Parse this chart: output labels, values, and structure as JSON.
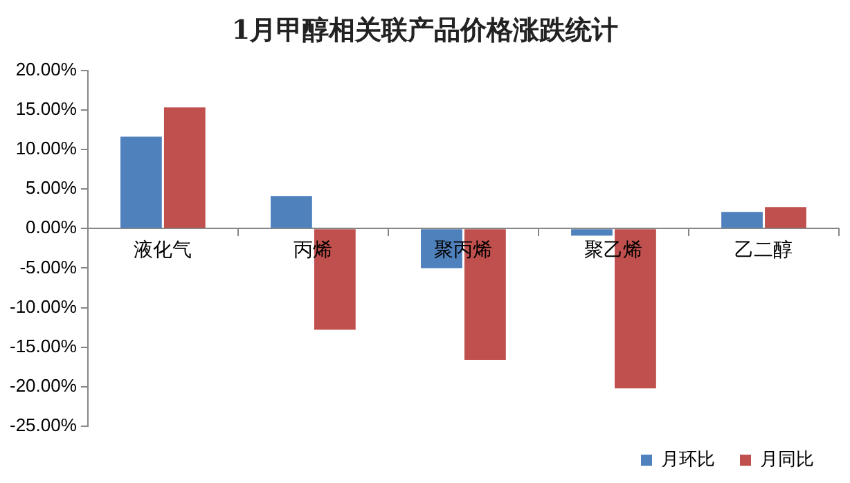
{
  "chart_data": {
    "type": "bar",
    "title": "1月甲醇相关联产品价格涨跌统计",
    "categories": [
      "液化气",
      "丙烯",
      "聚丙烯",
      "聚乙烯",
      "乙二醇"
    ],
    "series": [
      {
        "name": "月环比",
        "color": "#4f81bd",
        "values": [
          11.6,
          4.1,
          -5.0,
          -0.9,
          2.1
        ]
      },
      {
        "name": "月同比",
        "color": "#c0504d",
        "values": [
          15.3,
          -12.8,
          -16.6,
          -20.2,
          2.7
        ]
      }
    ],
    "ylim": [
      -25,
      20
    ],
    "yticks": [
      {
        "value": -25,
        "label": "-25.00%"
      },
      {
        "value": -20,
        "label": "-20.00%"
      },
      {
        "value": -15,
        "label": "-15.00%"
      },
      {
        "value": -10,
        "label": "-10.00%"
      },
      {
        "value": -5,
        "label": "-5.00%"
      },
      {
        "value": 0,
        "label": "0.00%"
      },
      {
        "value": 5,
        "label": "5.00%"
      },
      {
        "value": 10,
        "label": "10.00%"
      },
      {
        "value": 15,
        "label": "15.00%"
      },
      {
        "value": 20,
        "label": "20.00%"
      }
    ],
    "grid": false,
    "legend": "bottom right"
  }
}
